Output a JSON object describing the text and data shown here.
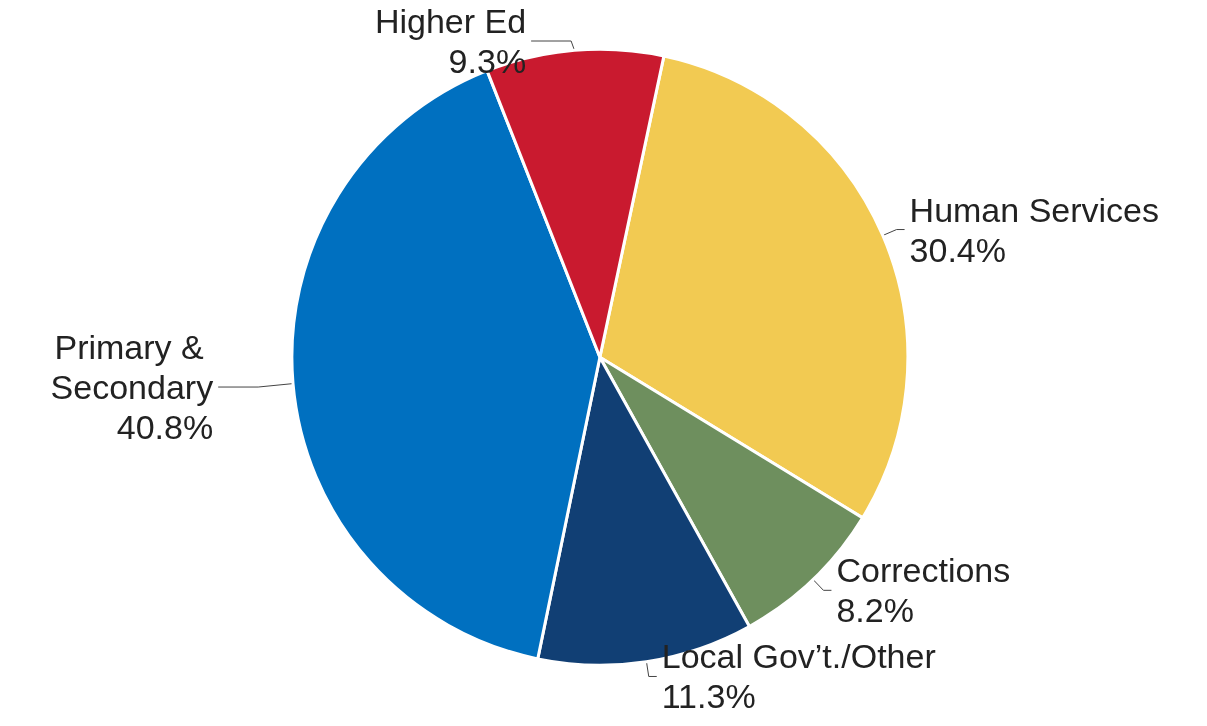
{
  "chart_data": {
    "type": "pie",
    "categories": [
      "Human Services",
      "Corrections",
      "Local Gov’t./Other",
      "Primary & Secondary",
      "Higher Ed"
    ],
    "values": [
      30.4,
      8.2,
      11.3,
      40.8,
      9.3
    ],
    "value_labels": [
      "30.4%",
      "8.2%",
      "11.3%",
      "40.8%",
      "9.3%"
    ],
    "colors": [
      "#f2ca52",
      "#6e8f5e",
      "#113f74",
      "#0070c0",
      "#c91a2f"
    ],
    "legend": false
  }
}
